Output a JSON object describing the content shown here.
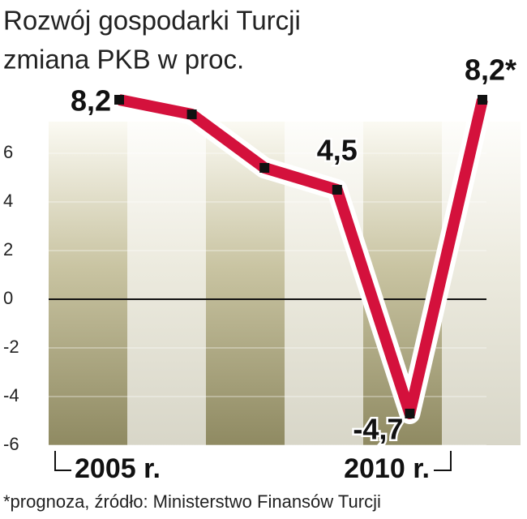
{
  "chart_data": {
    "type": "line",
    "title": "Rozwój gospodarki Turcji",
    "subtitle": "zmiana PKB w proc.",
    "note": "*prognoza, źródło: Ministerstwo Finansów Turcji",
    "categories": [
      "2005 r.",
      null,
      null,
      null,
      null,
      "2010 r."
    ],
    "series": [
      {
        "color": "#d4113c",
        "values": [
          8.2,
          7.6,
          5.4,
          4.5,
          -4.7,
          8.2
        ],
        "value_labels": [
          "8,2",
          null,
          null,
          "4,5",
          "-4,7",
          "8,2*"
        ]
      }
    ],
    "ylim": [
      -6,
      8.5
    ],
    "yticks": [
      -6,
      -4,
      -2,
      0,
      2,
      4,
      6
    ]
  }
}
